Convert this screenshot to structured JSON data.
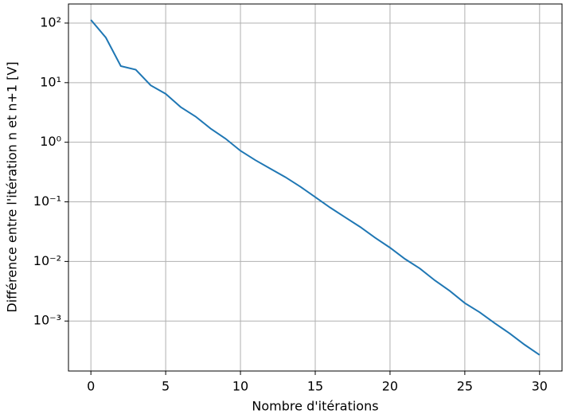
{
  "chart_data": {
    "type": "line",
    "xlabel": "Nombre d'itérations",
    "ylabel": "Différence entre l'itération n et n+1 [V]",
    "x": [
      0,
      1,
      2,
      3,
      4,
      5,
      6,
      7,
      8,
      9,
      10,
      11,
      12,
      13,
      14,
      15,
      16,
      17,
      18,
      19,
      20,
      21,
      22,
      23,
      24,
      25,
      26,
      27,
      28,
      29,
      30
    ],
    "series": [
      {
        "name": null,
        "color": "#1f77b4",
        "values": [
          113,
          57,
          19,
          16.5,
          9,
          6.5,
          3.9,
          2.7,
          1.7,
          1.15,
          0.72,
          0.5,
          0.36,
          0.26,
          0.18,
          0.12,
          0.08,
          0.055,
          0.038,
          0.025,
          0.017,
          0.011,
          0.0076,
          0.0048,
          0.0032,
          0.002,
          0.0014,
          0.00092,
          0.00062,
          0.0004,
          0.00027
        ]
      }
    ],
    "xlim": [
      -1.5,
      31.5
    ],
    "xticks": [
      0,
      5,
      10,
      15,
      20,
      25,
      30
    ],
    "ylim": [
      0.000145,
      209
    ],
    "log_y": true,
    "yticks": [
      {
        "value": 0.001,
        "label": "10⁻³"
      },
      {
        "value": 0.01,
        "label": "10⁻²"
      },
      {
        "value": 0.1,
        "label": "10⁻¹"
      },
      {
        "value": 1,
        "label": "10⁰"
      },
      {
        "value": 10,
        "label": "10¹"
      },
      {
        "value": 100,
        "label": "10²"
      }
    ],
    "grid": true
  }
}
